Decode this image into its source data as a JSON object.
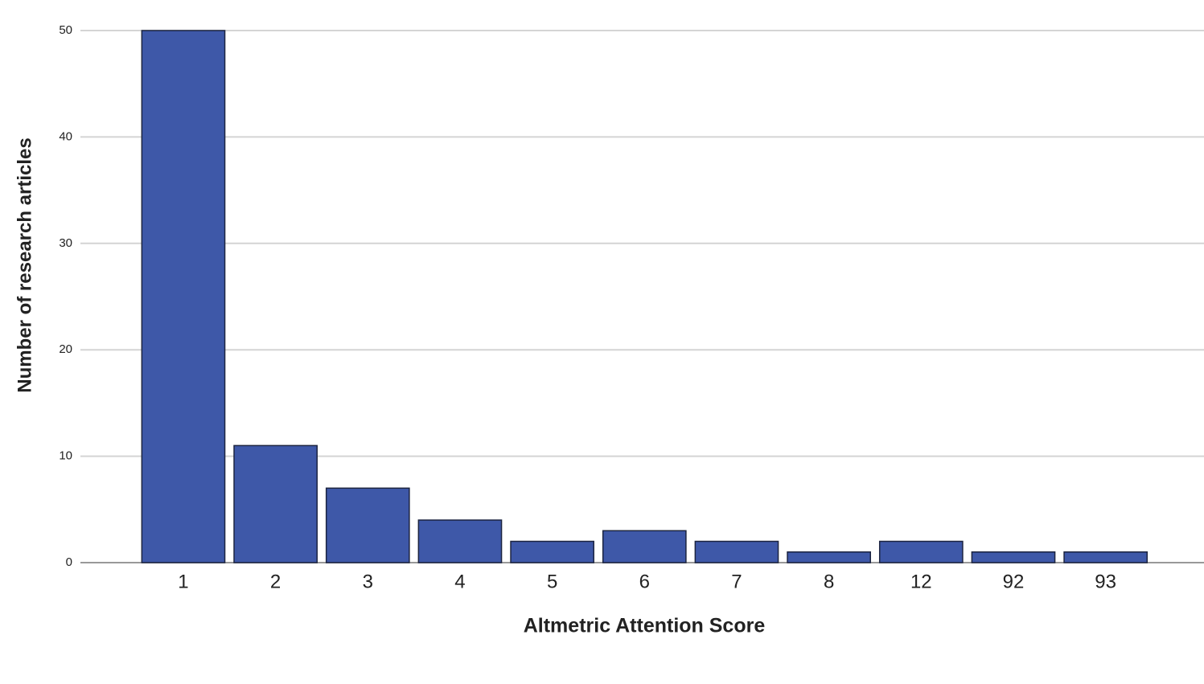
{
  "chart_data": {
    "type": "bar",
    "x_label": "Altmetric Attention Score",
    "y_label": "Number of research articles",
    "categories": [
      "1",
      "2",
      "3",
      "4",
      "5",
      "6",
      "7",
      "8",
      "12",
      "92",
      "93"
    ],
    "values": [
      50,
      11,
      7,
      4,
      2,
      3,
      2,
      1,
      2,
      1,
      1
    ],
    "color": "#3e58a8",
    "ylim": [
      0,
      50
    ],
    "yticks": [
      0,
      10,
      20,
      30,
      40,
      50
    ],
    "grid": true
  }
}
